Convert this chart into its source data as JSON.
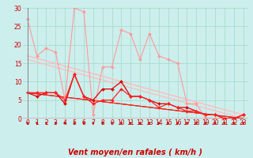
{
  "background_color": "#cceeed",
  "grid_color": "#aaddcc",
  "xlabel": "Vent moyen/en rafales ( km/h )",
  "xlim": [
    -0.5,
    23.5
  ],
  "ylim": [
    0,
    30
  ],
  "yticks": [
    0,
    5,
    10,
    15,
    20,
    25,
    30
  ],
  "xticks": [
    0,
    1,
    2,
    3,
    4,
    5,
    6,
    7,
    8,
    9,
    10,
    11,
    12,
    13,
    14,
    15,
    16,
    17,
    18,
    19,
    20,
    21,
    22,
    23
  ],
  "series": [
    {
      "x": [
        0,
        1,
        2,
        3,
        4,
        5,
        6,
        7,
        8,
        9,
        10,
        11,
        12,
        13,
        14,
        15,
        16,
        17,
        18,
        19,
        20,
        21,
        22,
        23
      ],
      "y": [
        27,
        17,
        19,
        18,
        5,
        30,
        29,
        1,
        14,
        14,
        24,
        23,
        16,
        23,
        17,
        16,
        15,
        4,
        4,
        0,
        0,
        0,
        0,
        1
      ],
      "color": "#ff9999",
      "lw": 0.8,
      "marker": "D",
      "ms": 2.0
    },
    {
      "x": [
        0,
        1,
        2,
        3,
        4,
        5,
        6,
        7,
        8,
        9,
        10,
        11,
        12,
        13,
        14,
        15,
        16,
        17,
        18,
        19,
        20,
        21,
        22,
        23
      ],
      "y": [
        7,
        6,
        7,
        7,
        4,
        12,
        6,
        5,
        8,
        8,
        10,
        6,
        6,
        5,
        4,
        4,
        3,
        3,
        2,
        1,
        1,
        0,
        0,
        1
      ],
      "color": "#dd0000",
      "lw": 0.9,
      "marker": "D",
      "ms": 2.0
    },
    {
      "x": [
        0,
        1,
        2,
        3,
        4,
        5,
        6,
        7,
        8,
        9,
        10,
        11,
        12,
        13,
        14,
        15,
        16,
        17,
        18,
        19,
        20,
        21,
        22,
        23
      ],
      "y": [
        7,
        7,
        7,
        7,
        5,
        12,
        6,
        4,
        5,
        5,
        8,
        6,
        6,
        5,
        3,
        4,
        3,
        2,
        2,
        1,
        1,
        0,
        0,
        1
      ],
      "color": "#ff2222",
      "lw": 0.9,
      "marker": "D",
      "ms": 2.0
    },
    {
      "x": [
        0,
        23
      ],
      "y": [
        17,
        1
      ],
      "color": "#ffbbbb",
      "lw": 1.0,
      "marker": null,
      "ms": 0
    },
    {
      "x": [
        0,
        23
      ],
      "y": [
        16,
        0
      ],
      "color": "#ffbbbb",
      "lw": 0.9,
      "marker": null,
      "ms": 0
    },
    {
      "x": [
        0,
        23
      ],
      "y": [
        7,
        0
      ],
      "color": "#dd0000",
      "lw": 0.8,
      "marker": null,
      "ms": 0
    },
    {
      "x": [
        0,
        23
      ],
      "y": [
        7,
        0
      ],
      "color": "#ff2222",
      "lw": 0.8,
      "marker": null,
      "ms": 0
    }
  ],
  "arrow_color": "#cc0000",
  "tick_label_color": "#cc0000",
  "xlabel_color": "#cc0000",
  "tick_label_fontsize": 5.5,
  "xlabel_fontsize": 7
}
